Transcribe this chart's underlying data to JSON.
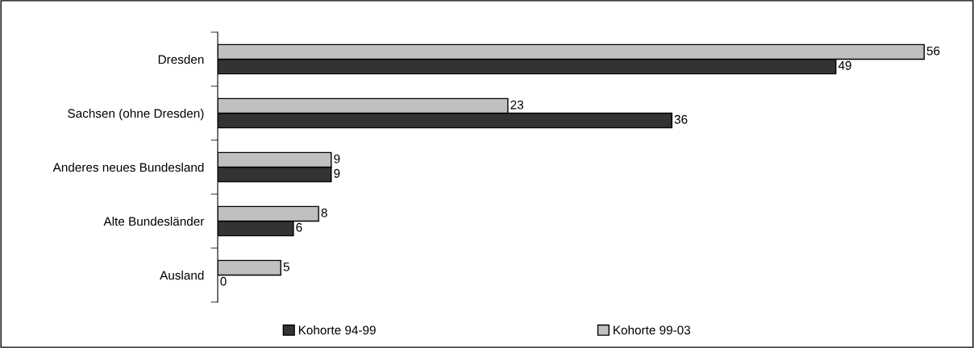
{
  "chart_data": {
    "type": "bar",
    "orientation": "horizontal",
    "categories": [
      "Dresden",
      "Sachsen (ohne Dresden)",
      "Anderes neues Bundesland",
      "Alte Bundesländer",
      "Ausland"
    ],
    "series": [
      {
        "name": "Kohorte 94-99",
        "color": "#333333",
        "values": [
          49,
          36,
          9,
          6,
          0
        ]
      },
      {
        "name": "Kohorte 99-03",
        "color": "#c0c0c0",
        "values": [
          56,
          23,
          9,
          8,
          5
        ]
      }
    ],
    "tick_labels": "y",
    "data_labels": true,
    "grid": false,
    "legend": "bottom"
  }
}
